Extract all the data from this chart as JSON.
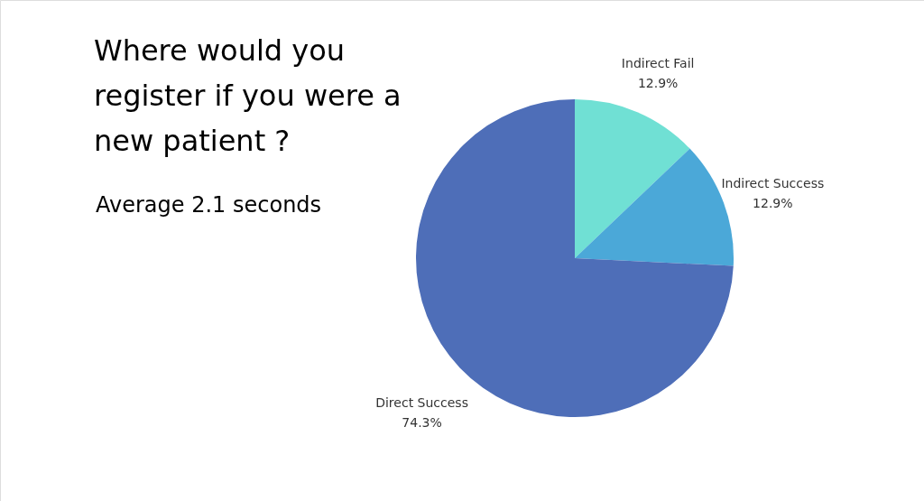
{
  "chart_data": {
    "type": "pie",
    "title": "Where would you register if you were a new patient ?",
    "subtitle": "Average 2.1 seconds",
    "categories": [
      "Indirect Fail",
      "Indirect Success",
      "Direct Success"
    ],
    "values": [
      12.9,
      12.9,
      74.3
    ],
    "value_labels": [
      "12.9%",
      "12.9%",
      "74.3%"
    ],
    "colors": [
      "#70e0d4",
      "#4ba8d8",
      "#4e6eb8"
    ]
  }
}
